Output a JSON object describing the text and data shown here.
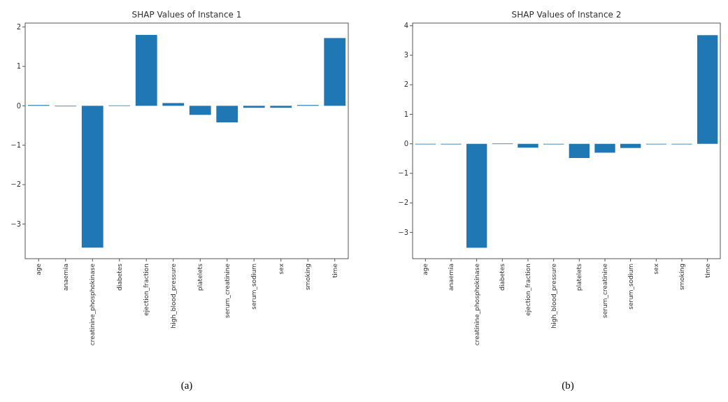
{
  "chart_data": [
    {
      "type": "bar",
      "title": "SHAP Values of Instance 1",
      "categories": [
        "age",
        "anaemia",
        "creatinine_phosphokinase",
        "diabetes",
        "ejection_fraction",
        "high_blood_pressure",
        "platelets",
        "serum_creatinine",
        "serum_sodium",
        "sex",
        "smoking",
        "time"
      ],
      "values": [
        0.02,
        0,
        -3.6,
        0.01,
        1.8,
        0.07,
        -0.23,
        -0.42,
        -0.05,
        -0.05,
        0.02,
        1.72
      ],
      "color": "#1f77b4",
      "ylim": [
        -3.88,
        2.1
      ],
      "yticks": [
        -3,
        -2,
        -1,
        0,
        1,
        2
      ],
      "grid": false,
      "annotations": [
        "(a)"
      ]
    },
    {
      "type": "bar",
      "title": "SHAP Values of Instance 2",
      "categories": [
        "age",
        "anaemia",
        "creatinine_phosphokinase",
        "diabetes",
        "ejection_fraction",
        "high_blood_pressure",
        "platelets",
        "serum_creatinine",
        "serum_sodium",
        "sex",
        "smoking",
        "time"
      ],
      "values": [
        0,
        -0.02,
        -3.52,
        0.01,
        -0.13,
        -0.02,
        -0.48,
        -0.3,
        -0.14,
        0,
        0,
        3.68
      ],
      "color": "#1f77b4",
      "ylim": [
        -3.89,
        4.09
      ],
      "yticks": [
        -3,
        -2,
        -1,
        0,
        1,
        2,
        3,
        4
      ],
      "grid": false,
      "annotations": [
        "(b)"
      ]
    }
  ]
}
